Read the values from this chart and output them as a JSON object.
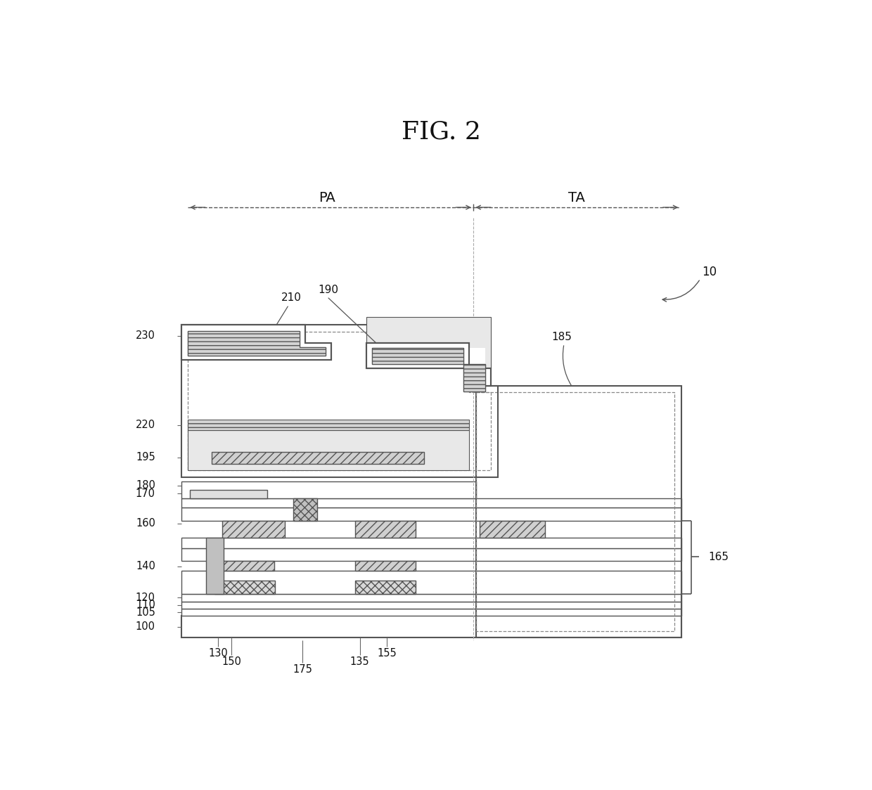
{
  "title": "FIG. 2",
  "fig_w": 12.4,
  "fig_h": 11.24,
  "dpi": 100,
  "ec": "#555555",
  "ec2": "#888888",
  "lc": "#555555",
  "fc_white": "#ffffff",
  "fc_light": "#e8e8e8",
  "fc_med": "#cccccc",
  "fc_dark": "#bbbbbb"
}
